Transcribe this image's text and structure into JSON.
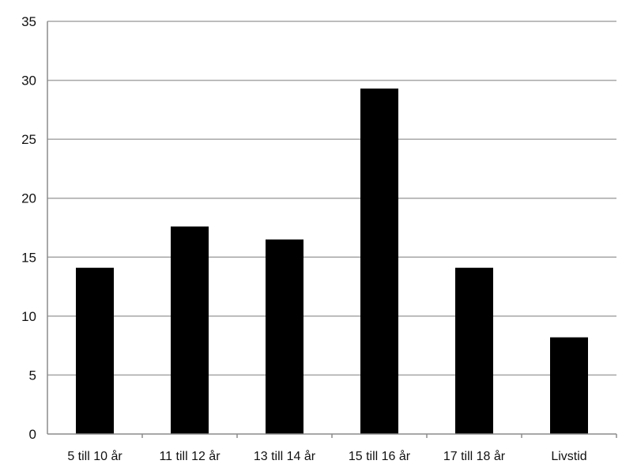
{
  "chart_data": {
    "type": "bar",
    "title": "",
    "xlabel": "",
    "ylabel": "",
    "categories": [
      "5 till 10 år",
      "11 till 12 år",
      "13 till 14 år",
      "15 till 16 år",
      "17 till 18 år",
      "Livstid"
    ],
    "values": [
      14.1,
      17.6,
      16.5,
      29.3,
      14.1,
      8.2
    ],
    "ylim": [
      0,
      35
    ],
    "yticks": [
      0,
      5,
      10,
      15,
      20,
      25,
      30,
      35
    ],
    "grid": true,
    "legend": "none",
    "bar_color": "#000000"
  }
}
